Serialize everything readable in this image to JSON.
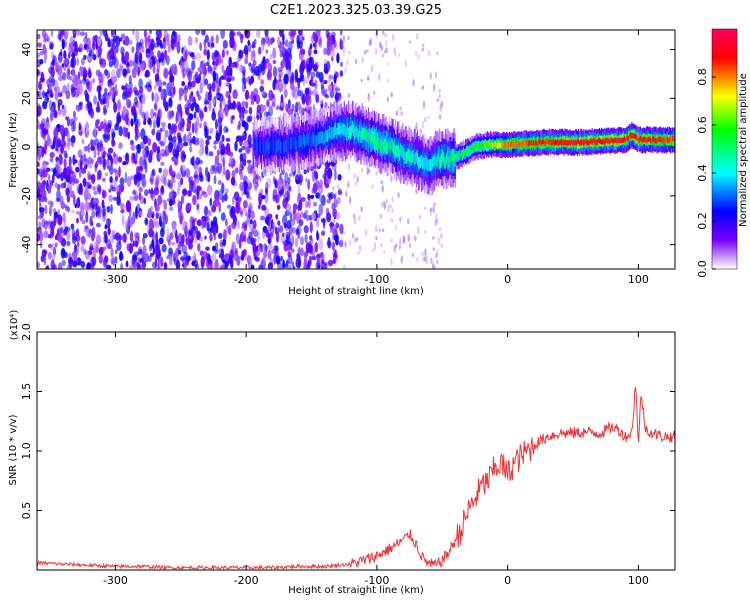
{
  "figure": {
    "title": "C2E1.2023.325.03.39.G25"
  },
  "chart_data": [
    {
      "type": "heatmap",
      "xlabel": "Height of straight line (km)",
      "ylabel": "Frequency (Hz)",
      "xlim": [
        -360,
        128
      ],
      "ylim": [
        -50,
        48
      ],
      "x_ticks": [
        -300,
        -200,
        -100,
        0,
        100
      ],
      "x_tick_labels": [
        "-300",
        "-200",
        "-100",
        "0",
        "100"
      ],
      "y_ticks": [
        -40,
        -20,
        0,
        20,
        40
      ],
      "y_tick_labels": [
        "-40",
        "-20",
        "0",
        "20",
        "40"
      ],
      "colorbar": {
        "label": "Normalized spectral amplitude",
        "range": [
          0,
          1
        ],
        "ticks": [
          0.0,
          0.2,
          0.4,
          0.6,
          0.8
        ],
        "tick_labels": [
          "0.0",
          "0.2",
          "0.4",
          "0.6",
          "0.8"
        ],
        "colormap": [
          "#ffffff",
          "#7a00ff",
          "#0000ff",
          "#00ffff",
          "#00ff00",
          "#ffff00",
          "#ff0000",
          "#ff0060"
        ]
      },
      "noise_region": {
        "x_range": [
          -360,
          -135
        ],
        "level": "scattered purple speckle, normalized ~0.1-0.3"
      },
      "ridge_center_frequency": [
        {
          "x": -195,
          "y": 0
        },
        {
          "x": -170,
          "y": 1
        },
        {
          "x": -150,
          "y": 3
        },
        {
          "x": -135,
          "y": 6
        },
        {
          "x": -120,
          "y": 7
        },
        {
          "x": -110,
          "y": 5
        },
        {
          "x": -100,
          "y": 2
        },
        {
          "x": -90,
          "y": 0
        },
        {
          "x": -80,
          "y": -3
        },
        {
          "x": -70,
          "y": -5
        },
        {
          "x": -60,
          "y": -8
        },
        {
          "x": -55,
          "y": -5
        },
        {
          "x": -45,
          "y": -5
        },
        {
          "x": -35,
          "y": -3
        },
        {
          "x": -25,
          "y": 0
        },
        {
          "x": -15,
          "y": 1
        },
        {
          "x": 0,
          "y": 1
        },
        {
          "x": 30,
          "y": 2
        },
        {
          "x": 60,
          "y": 2
        },
        {
          "x": 90,
          "y": 3
        },
        {
          "x": 95,
          "y": 5
        },
        {
          "x": 100,
          "y": 3
        },
        {
          "x": 128,
          "y": 3
        }
      ],
      "ridge_amplitude": [
        {
          "x": -195,
          "v": 0.25
        },
        {
          "x": -150,
          "v": 0.3
        },
        {
          "x": -120,
          "v": 0.45
        },
        {
          "x": -100,
          "v": 0.5
        },
        {
          "x": -80,
          "v": 0.45
        },
        {
          "x": -60,
          "v": 0.4
        },
        {
          "x": -40,
          "v": 0.5
        },
        {
          "x": -20,
          "v": 0.6
        },
        {
          "x": 0,
          "v": 0.8
        },
        {
          "x": 40,
          "v": 0.9
        },
        {
          "x": 80,
          "v": 0.9
        },
        {
          "x": 128,
          "v": 0.85
        }
      ]
    },
    {
      "type": "line",
      "xlabel": "Height of straight line (km)",
      "ylabel": "SNR (10 * v/v)",
      "y_scale_note": "(x10⁴)",
      "xlim": [
        -360,
        128
      ],
      "ylim": [
        0,
        2.0
      ],
      "x_ticks": [
        -300,
        -200,
        -100,
        0,
        100
      ],
      "x_tick_labels": [
        "-300",
        "-200",
        "-100",
        "0",
        "100"
      ],
      "y_ticks": [
        0.5,
        1.0,
        1.5,
        2.0
      ],
      "y_tick_labels": [
        "0.5",
        "1.0",
        "1.5",
        "2.0"
      ],
      "line_color": "#e8383a",
      "series": [
        {
          "x": [
            -360,
            -340,
            -320,
            -300,
            -280,
            -260,
            -240,
            -220,
            -200,
            -180,
            -160,
            -140,
            -120,
            -110,
            -100,
            -90,
            -80,
            -75,
            -70,
            -65,
            -60,
            -55,
            -50,
            -45,
            -40,
            -35,
            -30,
            -25,
            -20,
            -15,
            -10,
            -5,
            0,
            5,
            10,
            20,
            30,
            40,
            50,
            60,
            70,
            80,
            85,
            90,
            95,
            98,
            100,
            102,
            105,
            110,
            120,
            128
          ],
          "values": [
            0.06,
            0.05,
            0.04,
            0.03,
            0.03,
            0.02,
            0.02,
            0.02,
            0.02,
            0.02,
            0.03,
            0.03,
            0.05,
            0.08,
            0.12,
            0.18,
            0.25,
            0.3,
            0.22,
            0.1,
            0.05,
            0.04,
            0.08,
            0.15,
            0.25,
            0.35,
            0.5,
            0.6,
            0.7,
            0.75,
            0.85,
            0.9,
            0.8,
            0.9,
            0.95,
            1.05,
            1.12,
            1.15,
            1.15,
            1.16,
            1.15,
            1.2,
            1.18,
            1.12,
            1.15,
            1.6,
            1.0,
            1.5,
            1.2,
            1.15,
            1.12,
            1.12
          ]
        }
      ]
    }
  ]
}
